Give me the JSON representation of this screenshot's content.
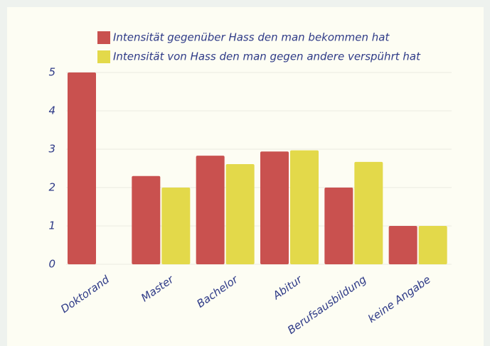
{
  "chart_data": {
    "type": "bar",
    "categories": [
      "Doktorand",
      "Master",
      "Bachelor",
      "Abitur",
      "Berufsausbildung",
      "keine Angabe"
    ],
    "series": [
      {
        "name": "Intensität gegenüber Hass den man bekommen hat",
        "color": "#c9514f",
        "values": [
          5,
          2.3,
          2.83,
          2.94,
          2.0,
          1.0
        ]
      },
      {
        "name": "Intensität von Hass den man gegen andere verspührt hat",
        "color": "#e3d94a",
        "values": [
          null,
          2.0,
          2.61,
          2.97,
          2.67,
          1.0
        ]
      }
    ],
    "ylim": [
      0,
      5
    ],
    "yticks": [
      0,
      1,
      2,
      3,
      4,
      5
    ],
    "grid": true,
    "legend": "top"
  }
}
